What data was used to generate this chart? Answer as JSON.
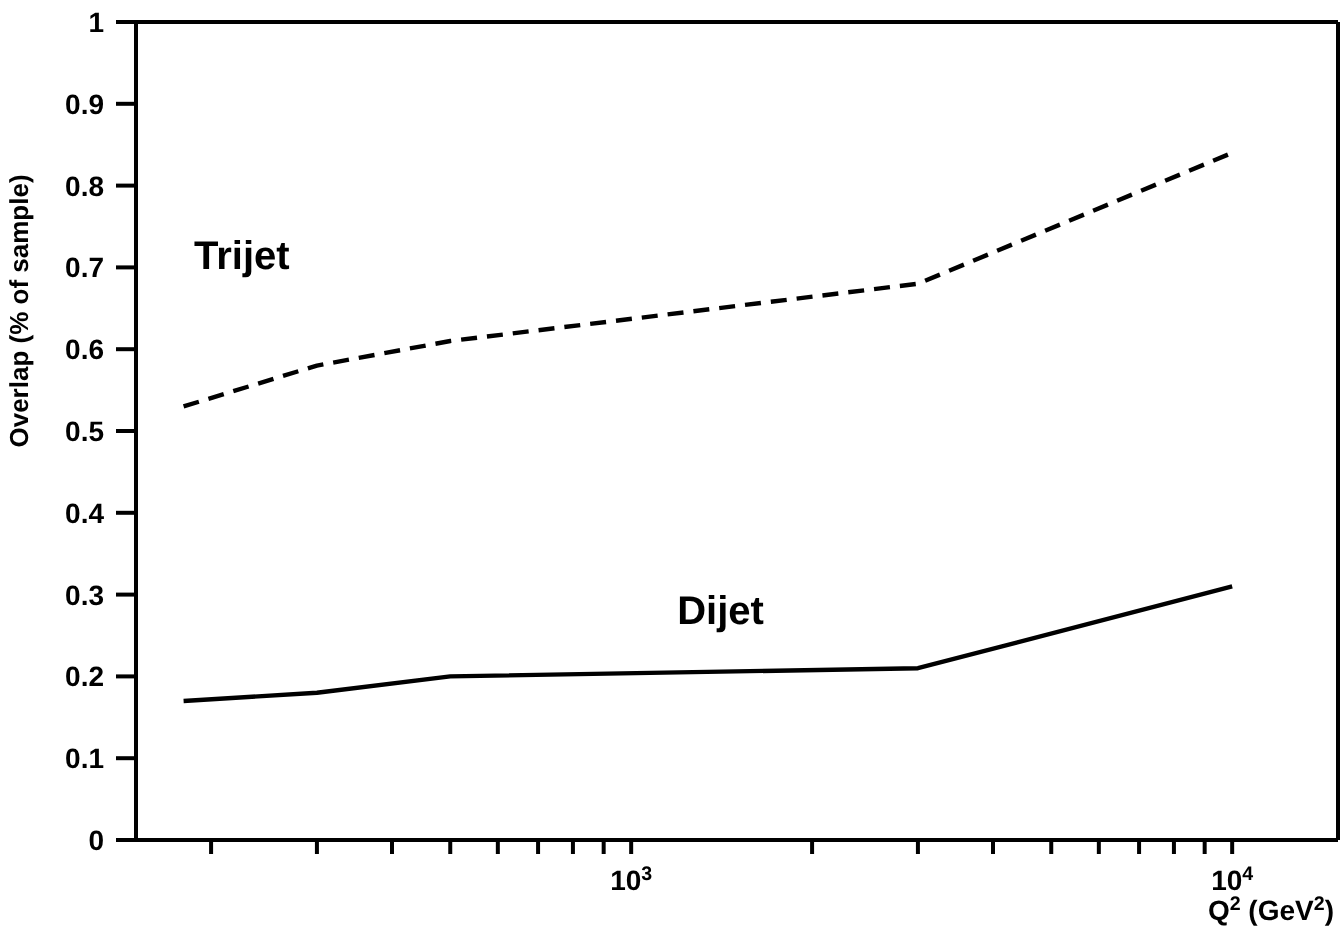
{
  "chart_data": {
    "type": "line",
    "xlabel": "Q$^{2}$ (GeV$^{2}$)",
    "ylabel": "Overlap (% of sample)",
    "log": "x",
    "xlim": [
      150,
      15000
    ],
    "xticks": [
      {
        "value": 200,
        "label": null
      },
      {
        "value": 300,
        "label": null
      },
      {
        "value": 400,
        "label": null
      },
      {
        "value": 500,
        "label": null
      },
      {
        "value": 600,
        "label": null
      },
      {
        "value": 700,
        "label": null
      },
      {
        "value": 800,
        "label": null
      },
      {
        "value": 900,
        "label": null
      },
      {
        "value": 1000,
        "label": "10$^{3}$"
      },
      {
        "value": 2000,
        "label": null
      },
      {
        "value": 3000,
        "label": null
      },
      {
        "value": 4000,
        "label": null
      },
      {
        "value": 5000,
        "label": null
      },
      {
        "value": 6000,
        "label": null
      },
      {
        "value": 7000,
        "label": null
      },
      {
        "value": 8000,
        "label": null
      },
      {
        "value": 9000,
        "label": null
      },
      {
        "value": 10000,
        "label": "10$^{4}$"
      }
    ],
    "ylim": [
      0,
      1
    ],
    "yticks": [
      0,
      0.1,
      0.2,
      0.3,
      0.4,
      0.5,
      0.6,
      0.7,
      0.8,
      0.9,
      1
    ],
    "marker": "none",
    "x": [
      180,
      300,
      500,
      3000,
      10000
    ],
    "series": [
      {
        "name": "Trijet",
        "color": "#000000",
        "line_style": "dashed",
        "values": [
          0.53,
          0.58,
          0.61,
          0.68,
          0.84
        ]
      },
      {
        "name": "Dijet",
        "color": "#000000",
        "line_style": "solid",
        "values": [
          0.17,
          0.18,
          0.2,
          0.21,
          0.31
        ]
      }
    ]
  }
}
